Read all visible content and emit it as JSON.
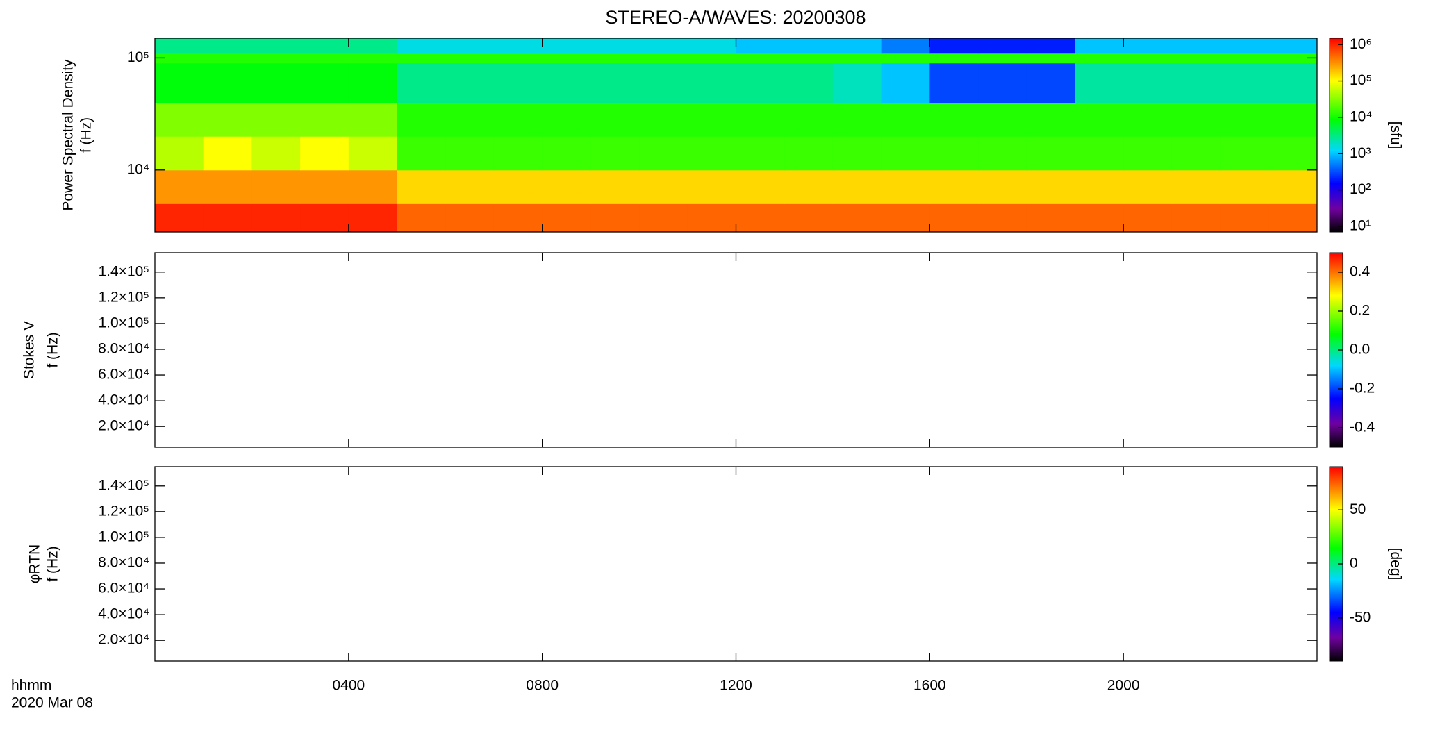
{
  "chart_data": [
    {
      "type": "heatmap",
      "title": "STEREO-A/WAVES: 20200308",
      "ylabel": [
        "Power Spectral Density",
        "f (Hz)"
      ],
      "xlim": [
        0,
        24
      ],
      "ylim": [
        2800,
        150000
      ],
      "ylog": true,
      "yticks": [
        {
          "value": 10000,
          "label": "10⁴"
        },
        {
          "value": 100000,
          "label": "10⁵"
        }
      ],
      "x_bins": [
        0,
        1,
        2,
        3,
        4,
        5,
        6,
        7,
        8,
        9,
        10,
        11,
        12,
        13,
        14,
        15,
        16,
        17,
        18,
        19,
        20,
        21,
        22,
        23,
        24
      ],
      "y_bins": [
        2800,
        5000,
        10000,
        20000,
        40000,
        90000,
        110000,
        150000
      ],
      "z": [
        [
          1000000,
          1000000,
          1000000,
          1000000,
          1000000,
          500000,
          500000,
          500000,
          500000,
          500000,
          500000,
          500000,
          500000,
          500000,
          500000,
          500000,
          500000,
          500000,
          500000,
          500000,
          500000,
          500000,
          500000,
          500000
        ],
        [
          300000,
          300000,
          300000,
          300000,
          300000,
          150000,
          150000,
          150000,
          150000,
          150000,
          150000,
          150000,
          150000,
          150000,
          150000,
          150000,
          150000,
          150000,
          150000,
          150000,
          150000,
          150000,
          150000,
          150000
        ],
        [
          50000,
          100000,
          60000,
          100000,
          60000,
          15000,
          15000,
          15000,
          15000,
          15000,
          15000,
          15000,
          15000,
          15000,
          15000,
          15000,
          15000,
          15000,
          15000,
          15000,
          15000,
          15000,
          15000,
          15000
        ],
        [
          30000,
          30000,
          30000,
          30000,
          30000,
          12000,
          12000,
          12000,
          12000,
          12000,
          12000,
          12000,
          12000,
          12000,
          12000,
          12000,
          12000,
          12000,
          12000,
          12000,
          12000,
          12000,
          12000,
          12000
        ],
        [
          8000,
          8000,
          8000,
          8000,
          8000,
          3000,
          3000,
          3000,
          3000,
          3000,
          3000,
          3000,
          3000,
          3000,
          2000,
          1000,
          300,
          300,
          300,
          2500,
          2500,
          2500,
          2500,
          2500
        ],
        [
          12000,
          12000,
          12000,
          12000,
          12000,
          12000,
          12000,
          12000,
          12000,
          12000,
          12000,
          12000,
          12000,
          12000,
          12000,
          12000,
          12000,
          12000,
          12000,
          12000,
          12000,
          12000,
          12000,
          12000
        ],
        [
          3000,
          3000,
          3000,
          3000,
          3000,
          1500,
          1500,
          1500,
          1500,
          1500,
          1500,
          1500,
          1000,
          1000,
          1000,
          500,
          200,
          200,
          200,
          1000,
          1000,
          1000,
          1000,
          1000
        ]
      ],
      "colorscale": [
        [
          0,
          "#000000"
        ],
        [
          0.12,
          "#7000a0"
        ],
        [
          0.25,
          "#0000ff"
        ],
        [
          0.42,
          "#00d8ff"
        ],
        [
          0.58,
          "#00ff00"
        ],
        [
          0.78,
          "#ffff00"
        ],
        [
          0.88,
          "#ff8800"
        ],
        [
          1,
          "#ff0000"
        ]
      ],
      "clim": [
        7,
        1500000
      ],
      "clog": true,
      "clabel": "[sfu]",
      "cticks": [
        {
          "value": 10,
          "label": "10¹"
        },
        {
          "value": 100,
          "label": "10²"
        },
        {
          "value": 1000,
          "label": "10³"
        },
        {
          "value": 10000,
          "label": "10⁴"
        },
        {
          "value": 100000,
          "label": "10⁵"
        },
        {
          "value": 1000000,
          "label": "10⁶"
        }
      ]
    },
    {
      "type": "heatmap",
      "ylabel": [
        "Stokes V",
        "f (Hz)"
      ],
      "xlim": [
        0,
        24
      ],
      "ylim": [
        3900,
        155000
      ],
      "ylog": false,
      "yticks": [
        {
          "value": 20000,
          "label": "2.0×10⁴"
        },
        {
          "value": 40000,
          "label": "4.0×10⁴"
        },
        {
          "value": 60000,
          "label": "6.0×10⁴"
        },
        {
          "value": 80000,
          "label": "8.0×10⁴"
        },
        {
          "value": 100000,
          "label": "1.0×10⁵"
        },
        {
          "value": 120000,
          "label": "1.2×10⁵"
        },
        {
          "value": 140000,
          "label": "1.4×10⁵"
        }
      ],
      "clim": [
        -0.5,
        0.5
      ],
      "clog": false,
      "cticks": [
        -0.4,
        -0.2,
        {
          "value": 0,
          "label": "0.0"
        },
        0.2,
        0.4
      ]
    },
    {
      "type": "heatmap",
      "ylabel": [
        "φRTN",
        "f (Hz)"
      ],
      "xlim": [
        0,
        24
      ],
      "ylim": [
        3900,
        155000
      ],
      "ylog": false,
      "yticks": [
        {
          "value": 20000,
          "label": "2.0×10⁴"
        },
        {
          "value": 40000,
          "label": "4.0×10⁴"
        },
        {
          "value": 60000,
          "label": "6.0×10⁴"
        },
        {
          "value": 80000,
          "label": "8.0×10⁴"
        },
        {
          "value": 100000,
          "label": "1.0×10⁵"
        },
        {
          "value": 120000,
          "label": "1.2×10⁵"
        },
        {
          "value": 140000,
          "label": "1.4×10⁵"
        }
      ],
      "clim": [
        -90,
        90
      ],
      "clog": false,
      "clabel": "[deg]",
      "cticks": [
        -50,
        0,
        50
      ],
      "x_label": "hhmm",
      "date_label": "2020 Mar 08",
      "xticks": [
        {
          "value": 4,
          "label": "0400"
        },
        {
          "value": 8,
          "label": "0800"
        },
        {
          "value": 12,
          "label": "1200"
        },
        {
          "value": 16,
          "label": "1600"
        },
        {
          "value": 20,
          "label": "2000"
        }
      ]
    }
  ]
}
